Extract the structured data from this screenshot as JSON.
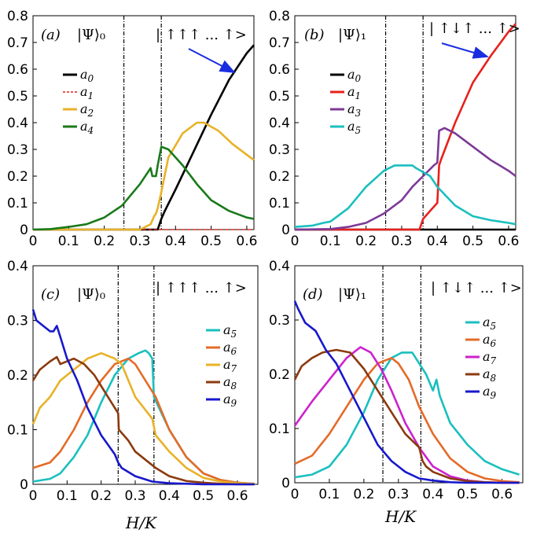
{
  "xlabel": "H/K",
  "chart_data": [
    {
      "type": "line",
      "panel": "(a)",
      "state": "|Ψ⟩₀",
      "annotation": "| ↑↑↑ ... ↑>",
      "xlim": [
        0,
        0.62
      ],
      "ylim": [
        0,
        0.8
      ],
      "xticks": [
        "0",
        "0.1",
        "0.2",
        "0.3",
        "0.4",
        "0.5",
        "0.6"
      ],
      "yticks": [
        "0",
        "0.1",
        "0.2",
        "0.3",
        "0.4",
        "0.5",
        "0.6",
        "0.7",
        "0.8"
      ],
      "vlines": [
        0.255,
        0.36
      ],
      "legend_position": "middle-left",
      "series": [
        {
          "name": "a0",
          "color": "#000000",
          "x": [
            0,
            0.35,
            0.355,
            0.36,
            0.37,
            0.4,
            0.45,
            0.5,
            0.55,
            0.6,
            0.62
          ],
          "y": [
            0,
            0,
            0.02,
            0.04,
            0.07,
            0.15,
            0.29,
            0.43,
            0.56,
            0.66,
            0.69
          ]
        },
        {
          "name": "a1",
          "color": "#e8211c",
          "dashed": true,
          "x": [
            0,
            0.62
          ],
          "y": [
            0,
            0
          ]
        },
        {
          "name": "a2",
          "color": "#e8b228",
          "x": [
            0,
            0.3,
            0.33,
            0.34,
            0.345,
            0.35,
            0.36,
            0.38,
            0.42,
            0.46,
            0.48,
            0.52,
            0.56,
            0.6,
            0.62
          ],
          "y": [
            0,
            0,
            0.02,
            0.05,
            0.06,
            0.08,
            0.14,
            0.27,
            0.36,
            0.4,
            0.4,
            0.37,
            0.32,
            0.28,
            0.26
          ]
        },
        {
          "name": "a4",
          "color": "#1a7a1a",
          "x": [
            0,
            0.05,
            0.1,
            0.15,
            0.2,
            0.25,
            0.3,
            0.33,
            0.335,
            0.345,
            0.35,
            0.36,
            0.38,
            0.42,
            0.46,
            0.5,
            0.55,
            0.6,
            0.62
          ],
          "y": [
            0,
            0.002,
            0.01,
            0.02,
            0.045,
            0.09,
            0.17,
            0.23,
            0.2,
            0.2,
            0.24,
            0.31,
            0.3,
            0.24,
            0.17,
            0.11,
            0.07,
            0.045,
            0.04
          ]
        }
      ]
    },
    {
      "type": "line",
      "panel": "(b)",
      "state": "|Ψ⟩₁",
      "annotation": "| ↑↓↑ ... ↑>",
      "xlim": [
        0,
        0.62
      ],
      "ylim": [
        0,
        0.8
      ],
      "xticks": [
        "0",
        "0.1",
        "0.2",
        "0.3",
        "0.4",
        "0.5",
        "0.6"
      ],
      "yticks": [
        "0",
        "0.1",
        "0.2",
        "0.3",
        "0.4",
        "0.5",
        "0.6",
        "0.7",
        "0.8"
      ],
      "vlines": [
        0.255,
        0.36
      ],
      "legend_position": "middle-left",
      "series": [
        {
          "name": "a0",
          "color": "#000000",
          "x": [
            0,
            0.62
          ],
          "y": [
            0,
            0
          ]
        },
        {
          "name": "a1",
          "color": "#e8211c",
          "x": [
            0,
            0.35,
            0.36,
            0.38,
            0.4,
            0.405,
            0.41,
            0.45,
            0.5,
            0.55,
            0.6,
            0.62
          ],
          "y": [
            0,
            0,
            0.04,
            0.07,
            0.1,
            0.24,
            0.26,
            0.4,
            0.55,
            0.65,
            0.74,
            0.77
          ]
        },
        {
          "name": "a3",
          "color": "#7d3a96",
          "x": [
            0,
            0.1,
            0.15,
            0.2,
            0.25,
            0.3,
            0.33,
            0.36,
            0.39,
            0.4,
            0.405,
            0.42,
            0.45,
            0.5,
            0.55,
            0.6,
            0.62
          ],
          "y": [
            0,
            0.002,
            0.01,
            0.025,
            0.06,
            0.11,
            0.16,
            0.2,
            0.24,
            0.25,
            0.37,
            0.38,
            0.36,
            0.31,
            0.26,
            0.22,
            0.2
          ]
        },
        {
          "name": "a5",
          "color": "#1bbfbf",
          "x": [
            0,
            0.05,
            0.08,
            0.1,
            0.15,
            0.2,
            0.25,
            0.28,
            0.3,
            0.33,
            0.34,
            0.36,
            0.38,
            0.4,
            0.45,
            0.5,
            0.55,
            0.6,
            0.62
          ],
          "y": [
            0.01,
            0.015,
            0.025,
            0.03,
            0.08,
            0.16,
            0.22,
            0.24,
            0.24,
            0.24,
            0.23,
            0.215,
            0.2,
            0.16,
            0.09,
            0.05,
            0.035,
            0.025,
            0.02
          ]
        }
      ]
    },
    {
      "type": "line",
      "panel": "(c)",
      "state": "|Ψ⟩₀",
      "annotation": "| ↑↑↑ ... ↑>",
      "xlim": [
        0,
        0.66
      ],
      "ylim": [
        0,
        0.4
      ],
      "xticks": [
        "0",
        "0.1",
        "0.2",
        "0.3",
        "0.4",
        "0.5",
        "0.6"
      ],
      "yticks": [
        "0",
        "0.1",
        "0.2",
        "0.3",
        "0.4"
      ],
      "vlines": [
        0.25,
        0.355
      ],
      "legend_position": "right",
      "series": [
        {
          "name": "a5",
          "color": "#1bbfbf",
          "x": [
            0,
            0.05,
            0.08,
            0.12,
            0.16,
            0.2,
            0.24,
            0.28,
            0.31,
            0.33,
            0.34,
            0.35,
            0.355,
            0.37,
            0.4,
            0.45,
            0.5,
            0.55,
            0.6,
            0.65
          ],
          "y": [
            0.005,
            0.01,
            0.02,
            0.05,
            0.09,
            0.15,
            0.2,
            0.23,
            0.24,
            0.245,
            0.24,
            0.23,
            0.16,
            0.14,
            0.1,
            0.05,
            0.02,
            0.008,
            0.003,
            0.001
          ]
        },
        {
          "name": "a6",
          "color": "#e46b28",
          "x": [
            0,
            0.05,
            0.08,
            0.12,
            0.16,
            0.2,
            0.24,
            0.28,
            0.3,
            0.33,
            0.36,
            0.4,
            0.45,
            0.5,
            0.55,
            0.6,
            0.65
          ],
          "y": [
            0.03,
            0.04,
            0.06,
            0.1,
            0.15,
            0.19,
            0.22,
            0.23,
            0.22,
            0.19,
            0.16,
            0.1,
            0.05,
            0.02,
            0.008,
            0.003,
            0.001
          ]
        },
        {
          "name": "a7",
          "color": "#e8b228",
          "x": [
            0,
            0.02,
            0.05,
            0.08,
            0.12,
            0.16,
            0.2,
            0.24,
            0.26,
            0.3,
            0.35,
            0.36,
            0.4,
            0.45,
            0.5,
            0.55,
            0.6,
            0.65
          ],
          "y": [
            0.11,
            0.14,
            0.16,
            0.19,
            0.21,
            0.23,
            0.24,
            0.23,
            0.22,
            0.16,
            0.12,
            0.09,
            0.06,
            0.03,
            0.012,
            0.005,
            0.002,
            0.001
          ]
        },
        {
          "name": "a8",
          "color": "#8b3a0e",
          "x": [
            0,
            0.02,
            0.05,
            0.07,
            0.08,
            0.1,
            0.12,
            0.15,
            0.18,
            0.22,
            0.25,
            0.252,
            0.28,
            0.3,
            0.34,
            0.36,
            0.4,
            0.45,
            0.5,
            0.55,
            0.6,
            0.65
          ],
          "y": [
            0.19,
            0.21,
            0.225,
            0.233,
            0.22,
            0.225,
            0.23,
            0.22,
            0.2,
            0.16,
            0.13,
            0.1,
            0.08,
            0.06,
            0.04,
            0.03,
            0.015,
            0.006,
            0.003,
            0.001,
            0,
            0
          ]
        },
        {
          "name": "a9",
          "color": "#1818cc",
          "x": [
            0,
            0.01,
            0.03,
            0.05,
            0.06,
            0.07,
            0.08,
            0.1,
            0.13,
            0.16,
            0.2,
            0.24,
            0.25,
            0.26,
            0.3,
            0.35,
            0.4,
            0.5,
            0.6,
            0.65
          ],
          "y": [
            0.32,
            0.3,
            0.29,
            0.28,
            0.28,
            0.29,
            0.27,
            0.23,
            0.19,
            0.14,
            0.09,
            0.055,
            0.04,
            0.03,
            0.015,
            0.005,
            0.002,
            0,
            0,
            0
          ]
        }
      ]
    },
    {
      "type": "line",
      "panel": "(d)",
      "state": "|Ψ⟩₁",
      "annotation": "| ↑↓↑ ... ↑>",
      "xlim": [
        0,
        0.66
      ],
      "ylim": [
        0,
        0.4
      ],
      "xticks": [
        "0",
        "0.1",
        "0.2",
        "0.3",
        "0.4",
        "0.5",
        "0.6"
      ],
      "yticks": [
        "0",
        "0.1",
        "0.2",
        "0.3",
        "0.4"
      ],
      "vlines": [
        0.255,
        0.365
      ],
      "legend_position": "right",
      "series": [
        {
          "name": "a5",
          "color": "#1bbfbf",
          "x": [
            0,
            0.05,
            0.1,
            0.15,
            0.2,
            0.24,
            0.28,
            0.31,
            0.34,
            0.36,
            0.38,
            0.4,
            0.41,
            0.42,
            0.45,
            0.5,
            0.55,
            0.6,
            0.65
          ],
          "y": [
            0.01,
            0.015,
            0.03,
            0.07,
            0.13,
            0.19,
            0.23,
            0.24,
            0.24,
            0.22,
            0.2,
            0.17,
            0.19,
            0.16,
            0.11,
            0.07,
            0.04,
            0.025,
            0.015
          ]
        },
        {
          "name": "a6",
          "color": "#e46b28",
          "x": [
            0,
            0.05,
            0.1,
            0.15,
            0.2,
            0.24,
            0.28,
            0.3,
            0.33,
            0.36,
            0.4,
            0.45,
            0.5,
            0.55,
            0.6,
            0.65
          ],
          "y": [
            0.035,
            0.05,
            0.09,
            0.14,
            0.19,
            0.22,
            0.23,
            0.22,
            0.19,
            0.14,
            0.09,
            0.045,
            0.02,
            0.008,
            0.003,
            0.001
          ]
        },
        {
          "name": "a7",
          "color": "#cc22cc",
          "x": [
            0,
            0.05,
            0.1,
            0.15,
            0.19,
            0.22,
            0.25,
            0.28,
            0.32,
            0.36,
            0.4,
            0.45,
            0.5,
            0.55,
            0.6,
            0.65
          ],
          "y": [
            0.105,
            0.15,
            0.19,
            0.23,
            0.25,
            0.24,
            0.21,
            0.17,
            0.11,
            0.065,
            0.03,
            0.012,
            0.004,
            0.001,
            0,
            0
          ]
        },
        {
          "name": "a8",
          "color": "#8b3a0e",
          "x": [
            0,
            0.02,
            0.05,
            0.08,
            0.12,
            0.16,
            0.2,
            0.24,
            0.28,
            0.32,
            0.36,
            0.37,
            0.38,
            0.4,
            0.45,
            0.5,
            0.55,
            0.6,
            0.65
          ],
          "y": [
            0.19,
            0.215,
            0.23,
            0.24,
            0.245,
            0.24,
            0.21,
            0.17,
            0.13,
            0.09,
            0.065,
            0.04,
            0.03,
            0.02,
            0.008,
            0.003,
            0.001,
            0,
            0
          ]
        },
        {
          "name": "a9",
          "color": "#1818cc",
          "x": [
            0,
            0.01,
            0.03,
            0.06,
            0.09,
            0.12,
            0.16,
            0.2,
            0.24,
            0.28,
            0.32,
            0.36,
            0.4,
            0.45,
            0.5,
            0.55,
            0.6,
            0.65
          ],
          "y": [
            0.335,
            0.32,
            0.295,
            0.28,
            0.245,
            0.22,
            0.17,
            0.12,
            0.07,
            0.04,
            0.02,
            0.008,
            0.004,
            0.001,
            0,
            0,
            0,
            0
          ]
        }
      ]
    }
  ]
}
